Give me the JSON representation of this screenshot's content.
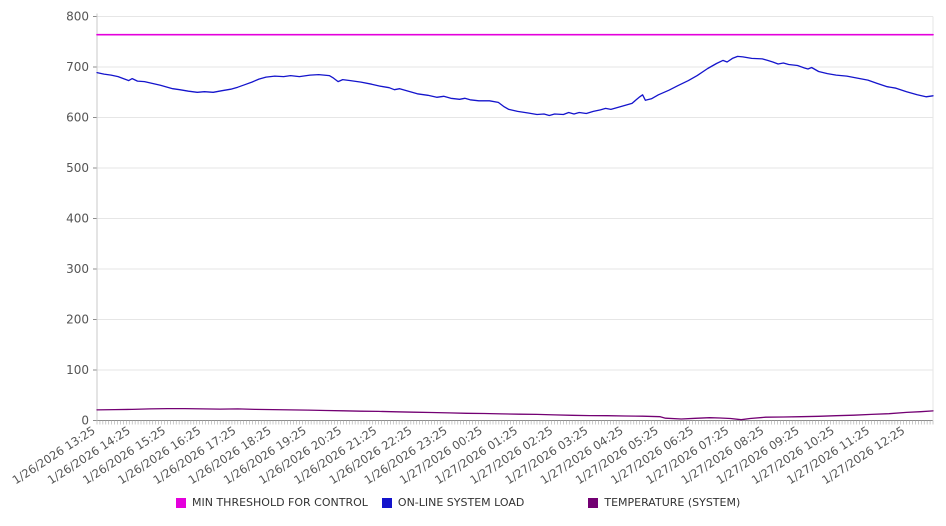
{
  "chart_data": {
    "type": "line",
    "title": "",
    "grid": true,
    "legend_position": "bottom",
    "x_axis": {
      "span_hours": 23.75,
      "label_interval_hours": 1,
      "minor_tick_minutes": 5,
      "label_rotation_deg": -33,
      "labels": [
        "1/26/2026 13:25",
        "1/26/2026 14:25",
        "1/26/2026 15:25",
        "1/26/2026 16:25",
        "1/26/2026 17:25",
        "1/26/2026 18:25",
        "1/26/2026 19:25",
        "1/26/2026 20:25",
        "1/26/2026 21:25",
        "1/26/2026 22:25",
        "1/26/2026 23:25",
        "1/27/2026 00:25",
        "1/27/2026 01:25",
        "1/27/2026 02:25",
        "1/27/2026 03:25",
        "1/27/2026 04:25",
        "1/27/2026 05:25",
        "1/27/2026 06:25",
        "1/27/2026 07:25",
        "1/27/2026 08:25",
        "1/27/2026 09:25",
        "1/27/2026 10:25",
        "1/27/2026 11:25",
        "1/27/2026 12:25"
      ]
    },
    "y_axis": {
      "min": 0,
      "max": 800,
      "tick_step": 100,
      "ticks": [
        0,
        100,
        200,
        300,
        400,
        500,
        600,
        700,
        800
      ]
    },
    "ylim": [
      0,
      800
    ],
    "series": [
      {
        "name": "MIN THRESHOLD FOR CONTROL",
        "color": "#e400dc",
        "style": "constant",
        "value": 764
      },
      {
        "name": "ON-LINE SYSTEM LOAD",
        "color": "#1414cc",
        "style": "line",
        "points": [
          [
            0.0,
            689
          ],
          [
            0.2,
            686
          ],
          [
            0.4,
            684
          ],
          [
            0.6,
            681
          ],
          [
            0.75,
            677
          ],
          [
            0.9,
            673
          ],
          [
            1.0,
            677
          ],
          [
            1.15,
            672
          ],
          [
            1.35,
            671
          ],
          [
            1.55,
            668
          ],
          [
            1.8,
            664
          ],
          [
            2.0,
            660
          ],
          [
            2.15,
            657
          ],
          [
            2.35,
            655
          ],
          [
            2.6,
            652
          ],
          [
            2.85,
            650
          ],
          [
            3.05,
            651
          ],
          [
            3.3,
            650
          ],
          [
            3.55,
            653
          ],
          [
            3.8,
            656
          ],
          [
            4.0,
            660
          ],
          [
            4.2,
            665
          ],
          [
            4.4,
            670
          ],
          [
            4.6,
            676
          ],
          [
            4.8,
            680
          ],
          [
            5.05,
            682
          ],
          [
            5.3,
            681
          ],
          [
            5.5,
            683
          ],
          [
            5.75,
            681
          ],
          [
            6.05,
            684
          ],
          [
            6.3,
            685
          ],
          [
            6.6,
            683
          ],
          [
            6.72,
            678
          ],
          [
            6.85,
            671
          ],
          [
            6.98,
            675
          ],
          [
            7.2,
            673
          ],
          [
            7.5,
            670
          ],
          [
            7.8,
            666
          ],
          [
            8.05,
            662
          ],
          [
            8.3,
            659
          ],
          [
            8.45,
            655
          ],
          [
            8.6,
            657
          ],
          [
            8.85,
            652
          ],
          [
            9.1,
            647
          ],
          [
            9.4,
            644
          ],
          [
            9.65,
            640
          ],
          [
            9.85,
            642
          ],
          [
            10.05,
            638
          ],
          [
            10.3,
            636
          ],
          [
            10.45,
            638
          ],
          [
            10.6,
            635
          ],
          [
            10.85,
            633
          ],
          [
            11.15,
            633
          ],
          [
            11.4,
            630
          ],
          [
            11.55,
            622
          ],
          [
            11.7,
            616
          ],
          [
            11.95,
            612
          ],
          [
            12.25,
            609
          ],
          [
            12.5,
            606
          ],
          [
            12.7,
            607
          ],
          [
            12.85,
            604
          ],
          [
            13.0,
            607
          ],
          [
            13.25,
            606
          ],
          [
            13.4,
            610
          ],
          [
            13.55,
            607
          ],
          [
            13.7,
            610
          ],
          [
            13.9,
            608
          ],
          [
            14.1,
            612
          ],
          [
            14.3,
            615
          ],
          [
            14.45,
            618
          ],
          [
            14.6,
            616
          ],
          [
            14.8,
            620
          ],
          [
            15.0,
            624
          ],
          [
            15.2,
            628
          ],
          [
            15.3,
            634
          ],
          [
            15.42,
            641
          ],
          [
            15.5,
            645
          ],
          [
            15.58,
            634
          ],
          [
            15.75,
            637
          ],
          [
            15.95,
            645
          ],
          [
            16.25,
            654
          ],
          [
            16.5,
            663
          ],
          [
            16.8,
            673
          ],
          [
            17.05,
            683
          ],
          [
            17.35,
            697
          ],
          [
            17.6,
            707
          ],
          [
            17.78,
            713
          ],
          [
            17.9,
            710
          ],
          [
            18.05,
            717
          ],
          [
            18.2,
            721
          ],
          [
            18.35,
            720
          ],
          [
            18.6,
            717
          ],
          [
            18.9,
            716
          ],
          [
            19.05,
            713
          ],
          [
            19.2,
            710
          ],
          [
            19.35,
            706
          ],
          [
            19.5,
            708
          ],
          [
            19.65,
            705
          ],
          [
            19.9,
            703
          ],
          [
            20.1,
            698
          ],
          [
            20.2,
            696
          ],
          [
            20.3,
            699
          ],
          [
            20.5,
            691
          ],
          [
            20.75,
            687
          ],
          [
            21.0,
            684
          ],
          [
            21.3,
            682
          ],
          [
            21.6,
            678
          ],
          [
            21.9,
            674
          ],
          [
            22.15,
            668
          ],
          [
            22.45,
            661
          ],
          [
            22.7,
            658
          ],
          [
            23.0,
            651
          ],
          [
            23.3,
            645
          ],
          [
            23.55,
            641
          ],
          [
            23.75,
            643
          ]
        ]
      },
      {
        "name": "TEMPERATURE (SYSTEM)",
        "color": "#730073",
        "style": "line",
        "points": [
          [
            0.0,
            21
          ],
          [
            0.5,
            21.5
          ],
          [
            1.0,
            22
          ],
          [
            1.5,
            23
          ],
          [
            2.0,
            23.5
          ],
          [
            2.5,
            23.5
          ],
          [
            3.0,
            23
          ],
          [
            3.5,
            22.5
          ],
          [
            4.0,
            23
          ],
          [
            4.5,
            22
          ],
          [
            5.0,
            21.5
          ],
          [
            5.5,
            21
          ],
          [
            6.0,
            20.5
          ],
          [
            6.5,
            19.8
          ],
          [
            7.0,
            19.2
          ],
          [
            7.5,
            18.5
          ],
          [
            8.0,
            18
          ],
          [
            8.5,
            17.2
          ],
          [
            9.0,
            16.5
          ],
          [
            9.5,
            15.8
          ],
          [
            10.0,
            15
          ],
          [
            10.5,
            14.3
          ],
          [
            11.0,
            13.8
          ],
          [
            11.5,
            13
          ],
          [
            12.0,
            12.5
          ],
          [
            12.5,
            12
          ],
          [
            13.0,
            11
          ],
          [
            13.5,
            10.3
          ],
          [
            14.0,
            9.8
          ],
          [
            14.5,
            9.5
          ],
          [
            15.0,
            9
          ],
          [
            15.5,
            8.5
          ],
          [
            16.0,
            7.5
          ],
          [
            16.15,
            4.5
          ],
          [
            16.6,
            3
          ],
          [
            17.0,
            4.3
          ],
          [
            17.4,
            5.5
          ],
          [
            17.7,
            5
          ],
          [
            18.0,
            4
          ],
          [
            18.3,
            1.5
          ],
          [
            18.55,
            4
          ],
          [
            19.0,
            6.5
          ],
          [
            19.5,
            7
          ],
          [
            20.0,
            7.6
          ],
          [
            20.5,
            8.3
          ],
          [
            21.0,
            9.5
          ],
          [
            21.5,
            10.5
          ],
          [
            22.0,
            12
          ],
          [
            22.5,
            13.5
          ],
          [
            23.0,
            16
          ],
          [
            23.4,
            17.5
          ],
          [
            23.75,
            19
          ]
        ]
      }
    ],
    "colors": {
      "background": "#ffffff",
      "grid": "#e6e6e6",
      "axis": "#8c8c8c",
      "minor_tick": "#a6a6a6",
      "tick_label": "#555555",
      "legend_text": "#333333"
    }
  }
}
